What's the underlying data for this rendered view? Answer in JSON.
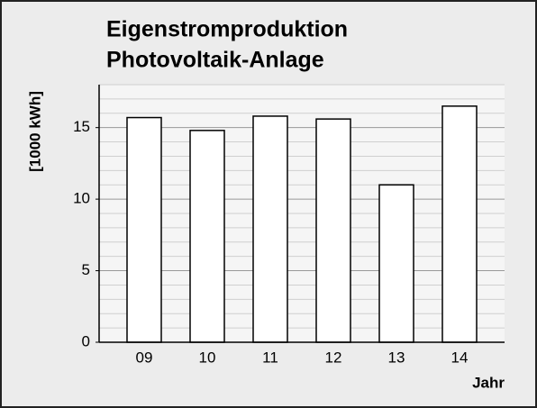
{
  "chart_data": {
    "type": "bar",
    "title": "Eigenstromproduktion",
    "subtitle": "Photovoltaik-Anlage",
    "y_label": "[1000 kWh]",
    "x_label": "Jahr",
    "categories": [
      "09",
      "10",
      "11",
      "12",
      "13",
      "14"
    ],
    "values": [
      15.7,
      14.8,
      15.8,
      15.6,
      11.0,
      16.5
    ],
    "color": "#ffffff",
    "ylim": [
      0,
      18
    ],
    "yticks": [
      0,
      5,
      10,
      15
    ],
    "grid": true
  }
}
